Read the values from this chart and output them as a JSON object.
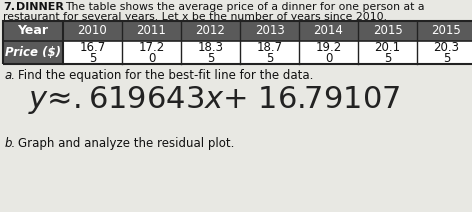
{
  "title_number": "7.",
  "title_keyword": "DINNER",
  "title_text": "The table shows the average price of a dinner for one person at a",
  "title_text2": "restaurant for several years. Let x be the number of years since 2010.",
  "years": [
    "2010",
    "2011",
    "2012",
    "2013",
    "2014",
    "2015",
    "2015"
  ],
  "prices_top": [
    "16.7",
    "17.2",
    "18.3",
    "18.7",
    "19.2",
    "20.1",
    "20.3"
  ],
  "prices_bot": [
    "5",
    "0",
    "5",
    "5",
    "0",
    "5",
    "5"
  ],
  "row_label_year": "Year",
  "row_label_price": "Price ($)",
  "part_a_label": "a.",
  "part_a_text": "Find the equation for the best-fit line for the data.",
  "equation_text": "y≈.619643x+ 16.79107",
  "part_b_label": "b.",
  "part_b_text": "Graph and analyze the residual plot.",
  "bg_color": "#e8e8e3",
  "table_header_bg": "#5a5a5a",
  "table_cell_bg": "#ffffff",
  "table_border_color": "#222222",
  "text_color": "#111111"
}
